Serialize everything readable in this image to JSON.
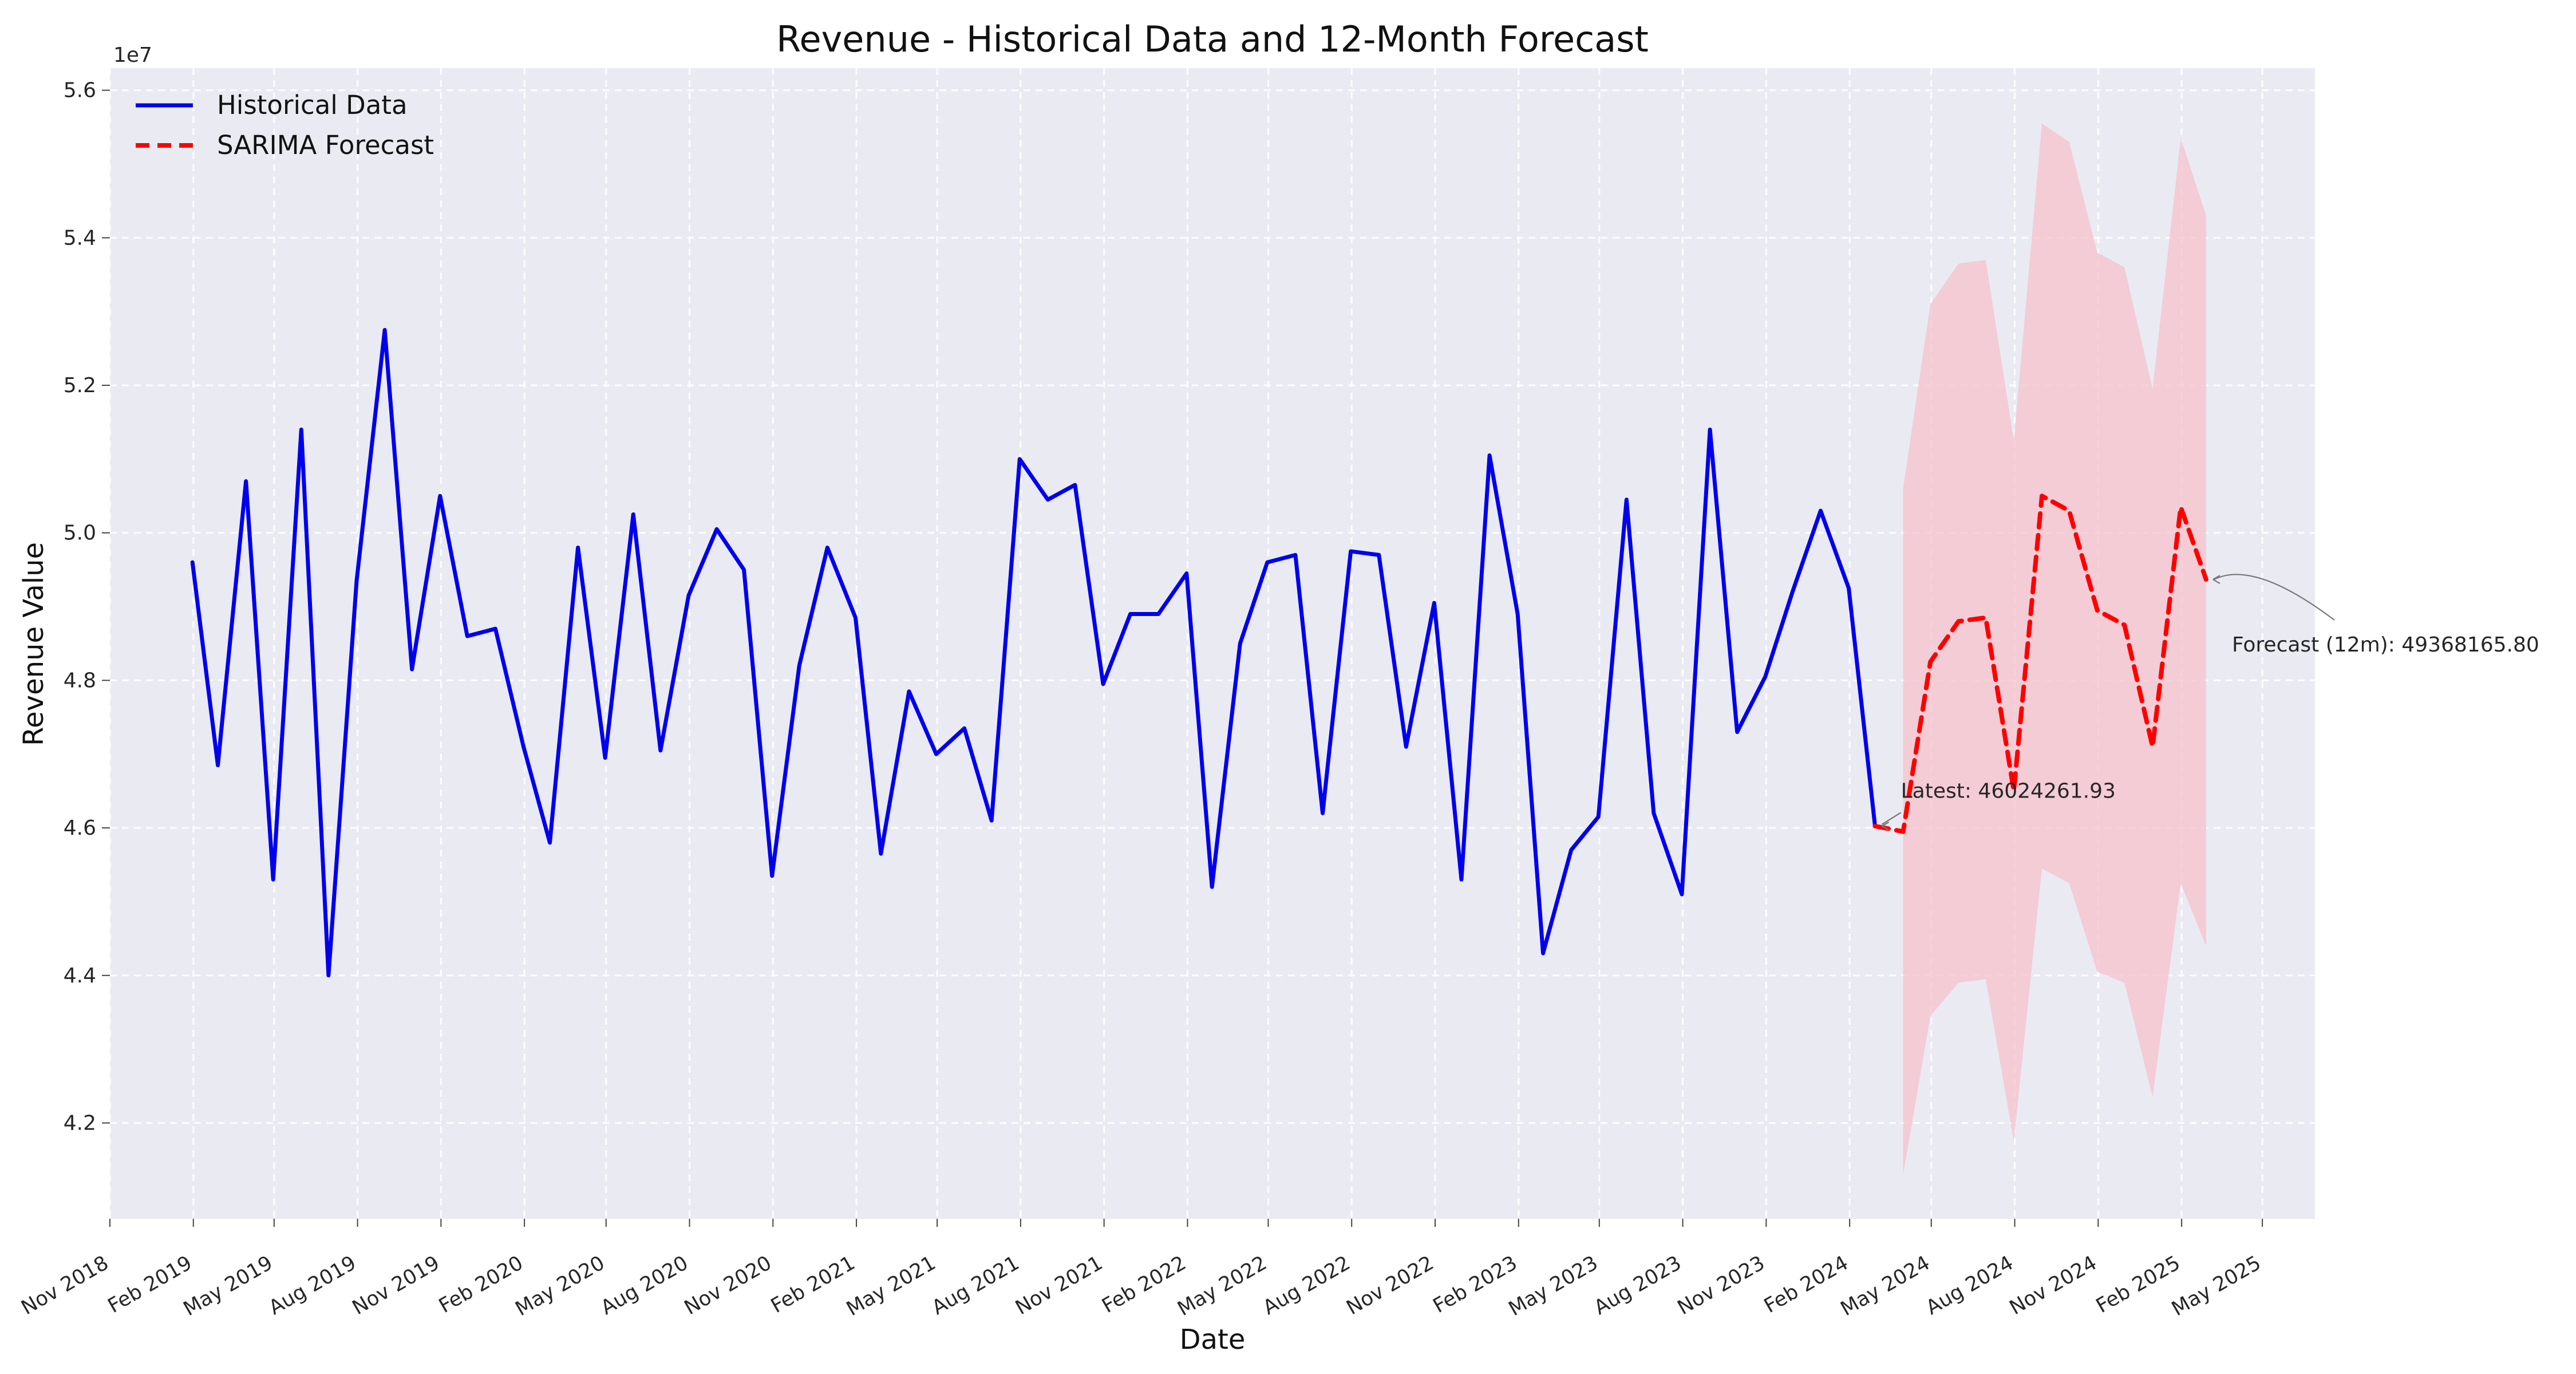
{
  "chart_data": {
    "type": "line",
    "title": "Revenue - Historical Data and 12-Month Forecast",
    "xlabel": "Date",
    "ylabel": "Revenue Value",
    "y_multiplier": "1e7",
    "grid": true,
    "legend_position": "top-left",
    "xlim": [
      "2018-11-01",
      "2025-06-28"
    ],
    "ylim": [
      40700000,
      56300000
    ],
    "x_ticks": [
      {
        "date": "2018-11-01",
        "label": "Nov 2018"
      },
      {
        "date": "2019-02-01",
        "label": "Feb 2019"
      },
      {
        "date": "2019-05-01",
        "label": "May 2019"
      },
      {
        "date": "2019-08-01",
        "label": "Aug 2019"
      },
      {
        "date": "2019-11-01",
        "label": "Nov 2019"
      },
      {
        "date": "2020-02-01",
        "label": "Feb 2020"
      },
      {
        "date": "2020-05-01",
        "label": "May 2020"
      },
      {
        "date": "2020-08-01",
        "label": "Aug 2020"
      },
      {
        "date": "2020-11-01",
        "label": "Nov 2020"
      },
      {
        "date": "2021-02-01",
        "label": "Feb 2021"
      },
      {
        "date": "2021-05-01",
        "label": "May 2021"
      },
      {
        "date": "2021-08-01",
        "label": "Aug 2021"
      },
      {
        "date": "2021-11-01",
        "label": "Nov 2021"
      },
      {
        "date": "2022-02-01",
        "label": "Feb 2022"
      },
      {
        "date": "2022-05-01",
        "label": "May 2022"
      },
      {
        "date": "2022-08-01",
        "label": "Aug 2022"
      },
      {
        "date": "2022-11-01",
        "label": "Nov 2022"
      },
      {
        "date": "2023-02-01",
        "label": "Feb 2023"
      },
      {
        "date": "2023-05-01",
        "label": "May 2023"
      },
      {
        "date": "2023-08-01",
        "label": "Aug 2023"
      },
      {
        "date": "2023-11-01",
        "label": "Nov 2023"
      },
      {
        "date": "2024-02-01",
        "label": "Feb 2024"
      },
      {
        "date": "2024-05-01",
        "label": "May 2024"
      },
      {
        "date": "2024-08-01",
        "label": "Aug 2024"
      },
      {
        "date": "2024-11-01",
        "label": "Nov 2024"
      },
      {
        "date": "2025-02-01",
        "label": "Feb 2025"
      },
      {
        "date": "2025-05-01",
        "label": "May 2025"
      }
    ],
    "y_ticks": [
      {
        "value": 42000000,
        "label": "4.2"
      },
      {
        "value": 44000000,
        "label": "4.4"
      },
      {
        "value": 46000000,
        "label": "4.6"
      },
      {
        "value": 48000000,
        "label": "4.8"
      },
      {
        "value": 50000000,
        "label": "5.0"
      },
      {
        "value": 52000000,
        "label": "5.2"
      },
      {
        "value": 54000000,
        "label": "5.4"
      },
      {
        "value": 56000000,
        "label": "5.6"
      }
    ],
    "series": [
      {
        "name": "Historical Data",
        "color": "#0000ee",
        "style": "solid",
        "points": [
          {
            "x": "2019-01-31",
            "y": 49600000
          },
          {
            "x": "2019-02-28",
            "y": 46850000
          },
          {
            "x": "2019-03-31",
            "y": 50700000
          },
          {
            "x": "2019-04-30",
            "y": 45300000
          },
          {
            "x": "2019-05-31",
            "y": 51400000
          },
          {
            "x": "2019-06-30",
            "y": 44000000
          },
          {
            "x": "2019-07-31",
            "y": 49350000
          },
          {
            "x": "2019-08-31",
            "y": 52750000
          },
          {
            "x": "2019-09-30",
            "y": 48150000
          },
          {
            "x": "2019-10-31",
            "y": 50500000
          },
          {
            "x": "2019-11-30",
            "y": 48600000
          },
          {
            "x": "2019-12-31",
            "y": 48700000
          },
          {
            "x": "2020-01-31",
            "y": 47100000
          },
          {
            "x": "2020-02-29",
            "y": 45800000
          },
          {
            "x": "2020-03-31",
            "y": 49800000
          },
          {
            "x": "2020-04-30",
            "y": 46950000
          },
          {
            "x": "2020-05-31",
            "y": 50250000
          },
          {
            "x": "2020-06-30",
            "y": 47050000
          },
          {
            "x": "2020-07-31",
            "y": 49150000
          },
          {
            "x": "2020-08-31",
            "y": 50050000
          },
          {
            "x": "2020-09-30",
            "y": 49500000
          },
          {
            "x": "2020-10-31",
            "y": 45350000
          },
          {
            "x": "2020-11-30",
            "y": 48200000
          },
          {
            "x": "2020-12-31",
            "y": 49800000
          },
          {
            "x": "2021-01-31",
            "y": 48850000
          },
          {
            "x": "2021-02-28",
            "y": 45650000
          },
          {
            "x": "2021-03-31",
            "y": 47850000
          },
          {
            "x": "2021-04-30",
            "y": 47000000
          },
          {
            "x": "2021-05-31",
            "y": 47350000
          },
          {
            "x": "2021-06-30",
            "y": 46100000
          },
          {
            "x": "2021-07-31",
            "y": 51000000
          },
          {
            "x": "2021-08-31",
            "y": 50450000
          },
          {
            "x": "2021-09-30",
            "y": 50650000
          },
          {
            "x": "2021-10-31",
            "y": 47950000
          },
          {
            "x": "2021-11-30",
            "y": 48900000
          },
          {
            "x": "2021-12-31",
            "y": 48900000
          },
          {
            "x": "2022-01-31",
            "y": 49450000
          },
          {
            "x": "2022-02-28",
            "y": 45200000
          },
          {
            "x": "2022-03-31",
            "y": 48500000
          },
          {
            "x": "2022-04-30",
            "y": 49600000
          },
          {
            "x": "2022-05-31",
            "y": 49700000
          },
          {
            "x": "2022-06-30",
            "y": 46200000
          },
          {
            "x": "2022-07-31",
            "y": 49750000
          },
          {
            "x": "2022-08-31",
            "y": 49700000
          },
          {
            "x": "2022-09-30",
            "y": 47100000
          },
          {
            "x": "2022-10-31",
            "y": 49050000
          },
          {
            "x": "2022-11-30",
            "y": 45300000
          },
          {
            "x": "2022-12-31",
            "y": 51050000
          },
          {
            "x": "2023-01-31",
            "y": 48900000
          },
          {
            "x": "2023-02-28",
            "y": 44300000
          },
          {
            "x": "2023-03-31",
            "y": 45700000
          },
          {
            "x": "2023-04-30",
            "y": 46150000
          },
          {
            "x": "2023-05-31",
            "y": 50450000
          },
          {
            "x": "2023-06-30",
            "y": 46200000
          },
          {
            "x": "2023-07-31",
            "y": 45100000
          },
          {
            "x": "2023-08-31",
            "y": 51400000
          },
          {
            "x": "2023-09-30",
            "y": 47300000
          },
          {
            "x": "2023-10-31",
            "y": 48050000
          },
          {
            "x": "2023-11-30",
            "y": 49200000
          },
          {
            "x": "2023-12-31",
            "y": 50300000
          },
          {
            "x": "2024-01-31",
            "y": 49250000
          },
          {
            "x": "2024-02-29",
            "y": 46024261.93
          }
        ]
      },
      {
        "name": "SARIMA Forecast",
        "color": "#ff0000",
        "style": "dashed",
        "points": [
          {
            "x": "2024-03-31",
            "y": 45950000
          },
          {
            "x": "2024-04-30",
            "y": 48250000
          },
          {
            "x": "2024-05-31",
            "y": 48800000
          },
          {
            "x": "2024-06-30",
            "y": 48850000
          },
          {
            "x": "2024-07-31",
            "y": 46500000
          },
          {
            "x": "2024-08-31",
            "y": 50500000
          },
          {
            "x": "2024-09-30",
            "y": 50300000
          },
          {
            "x": "2024-10-31",
            "y": 48950000
          },
          {
            "x": "2024-11-30",
            "y": 48750000
          },
          {
            "x": "2024-12-31",
            "y": 47100000
          },
          {
            "x": "2025-01-31",
            "y": 50350000
          },
          {
            "x": "2025-02-28",
            "y": 49368165.8
          }
        ]
      }
    ],
    "confidence_interval": {
      "color": "#f6c2cb",
      "x": [
        "2024-03-31",
        "2024-04-30",
        "2024-05-31",
        "2024-06-30",
        "2024-07-31",
        "2024-08-31",
        "2024-09-30",
        "2024-10-31",
        "2024-11-30",
        "2024-12-31",
        "2025-01-31",
        "2025-02-28"
      ],
      "lower": [
        41300000,
        43450000,
        43900000,
        43950000,
        41750000,
        45450000,
        45250000,
        44050000,
        43900000,
        42350000,
        45250000,
        44400000
      ],
      "upper": [
        50600000,
        53100000,
        53650000,
        53700000,
        51250000,
        55550000,
        55300000,
        53800000,
        53600000,
        51950000,
        55350000,
        54300000
      ]
    },
    "annotations": [
      {
        "name": "latest",
        "text": "Latest: 46024261.93",
        "x": "2024-02-29",
        "y": 46024261.93,
        "label_x": "2024-03-31",
        "label_y": 46410000,
        "arrow": "straight"
      },
      {
        "name": "forecast",
        "text": "Forecast (12m): 49368165.80",
        "x": "2025-02-28",
        "y": 49368165.8,
        "label_x": "2025-03-31",
        "label_y": 48390000,
        "arrow": "curved"
      }
    ]
  }
}
